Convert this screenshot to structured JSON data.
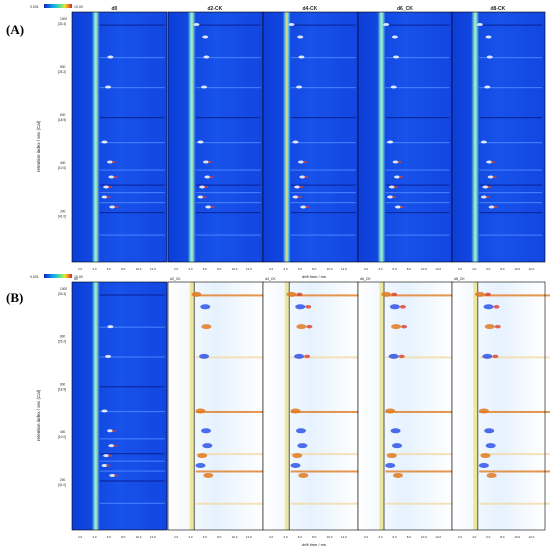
{
  "panels": [
    {
      "letter": "(A)",
      "colorbar_labels": [
        "0.001",
        "10.00"
      ],
      "ylabel": "retention index / sec (Cal)",
      "xlabel": "drift time / ms",
      "yticks": [
        {
          "value": "1000",
          "sub": "[33.4]"
        },
        {
          "value": "800",
          "sub": "[25.2]"
        },
        {
          "value": "600",
          "sub": "[18.9]"
        },
        {
          "value": "400",
          "sub": "[10.0]"
        },
        {
          "value": "200",
          "sub": "[41.0]"
        }
      ],
      "xticks": [
        "2.0",
        "4.0",
        "6.0",
        "8.0",
        "10.0",
        "12.0"
      ],
      "samples": [
        "d0",
        "d2-CK",
        "d4-CK",
        "d6_CK",
        "d8-CK"
      ]
    },
    {
      "letter": "(B)",
      "colorbar_labels": [
        "0.001",
        "10.00"
      ],
      "ylabel": "retention index / sec (Cal)",
      "xlabel": "drift time / ms",
      "yticks": [
        {
          "value": "1000",
          "sub": "[33.4]"
        },
        {
          "value": "800",
          "sub": "[25.2]"
        },
        {
          "value": "600",
          "sub": "[18.9]"
        },
        {
          "value": "400",
          "sub": "[10.0]"
        },
        {
          "value": "200",
          "sub": "[41.0]"
        }
      ],
      "xticks": [
        "2.0",
        "4.0",
        "6.0",
        "8.0",
        "10.0",
        "12.0"
      ],
      "samples": [
        "d0",
        "d2_CK",
        "d4_CK",
        "d6_CK",
        "d8_CK"
      ]
    }
  ],
  "colors": {
    "background_blue": "#1346e0",
    "reference_blue": "#0a2fd0",
    "difference_bg": "#eaf4ff",
    "rip_cyan": "#7fe0d0",
    "rip_yellow": "#e8e070",
    "red": "#d8402a",
    "positive_orange": "#e07a20",
    "negative_blue": "#2f54e8"
  },
  "chart_data": [
    {
      "type": "heatmap",
      "title": "(A)",
      "xlabel": "drift time / ms",
      "ylabel": "retention index / sec (Cal)",
      "xticks": [
        2.0,
        4.0,
        6.0,
        8.0,
        10.0,
        12.0
      ],
      "yticks": [
        200,
        400,
        600,
        800,
        1000
      ],
      "panels": [
        "d0",
        "d2-CK",
        "d4-CK",
        "d6_CK",
        "d8-CK"
      ],
      "colorbar": [
        0.001,
        10.0
      ]
    },
    {
      "type": "heatmap",
      "title": "(B)",
      "xlabel": "drift time / ms",
      "ylabel": "retention index / sec (Cal)",
      "xticks": [
        2.0,
        4.0,
        6.0,
        8.0,
        10.0,
        12.0
      ],
      "yticks": [
        200,
        400,
        600,
        800,
        1000
      ],
      "panels": [
        "d0",
        "d2_CK",
        "d4_CK",
        "d6_CK",
        "d8_CK"
      ],
      "colorbar": [
        0.001,
        10.0
      ]
    }
  ]
}
